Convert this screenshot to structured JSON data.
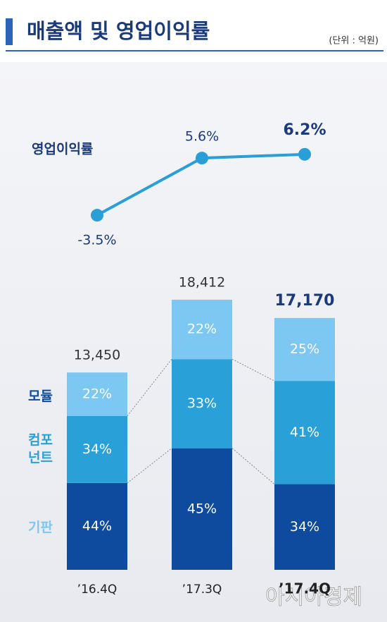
{
  "title": "매출액 및 영업이익률",
  "unit": "(단위 : 억원)",
  "watermark": "아시아경제",
  "chart_data": {
    "type": "bar",
    "categories": [
      "’16.4Q",
      "’17.3Q",
      "’17.4Q"
    ],
    "totals": {
      "values": [
        13450,
        18412,
        17170
      ],
      "value_labels": [
        "13,450",
        "18,412",
        "17,170"
      ]
    },
    "series": [
      {
        "name": "모듈",
        "color": "#0e4a9e",
        "values": [
          44,
          45,
          34
        ],
        "value_labels": [
          "44%",
          "45%",
          "34%"
        ]
      },
      {
        "name": "컴포넌트",
        "color": "#2aa0d8",
        "values": [
          34,
          33,
          41
        ],
        "value_labels": [
          "34%",
          "33%",
          "41%"
        ]
      },
      {
        "name": "기판",
        "color": "#7cc8f2",
        "values": [
          22,
          22,
          25
        ],
        "value_labels": [
          "22%",
          "22%",
          "25%"
        ]
      }
    ],
    "line": {
      "type": "line",
      "name": "영업이익률",
      "color": "#2a9ed6",
      "values": [
        -3.5,
        5.6,
        6.2
      ],
      "value_labels": [
        "-3.5%",
        "5.6%",
        "6.2%"
      ]
    }
  }
}
